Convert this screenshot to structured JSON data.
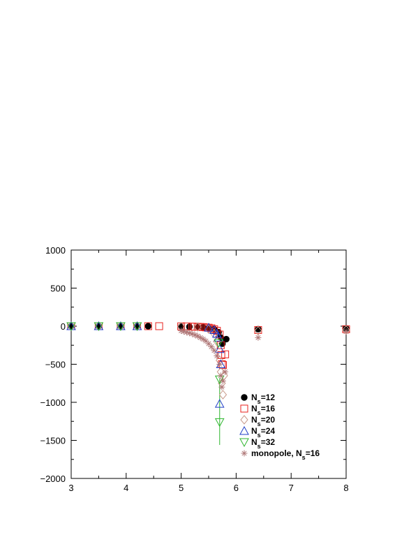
{
  "chart_data": {
    "type": "scatter",
    "title": "",
    "xlabel": "",
    "ylabel": "",
    "xlim": [
      3,
      8
    ],
    "ylim": [
      -2000,
      1000
    ],
    "x_ticks": [
      3,
      4,
      5,
      6,
      7,
      8
    ],
    "y_ticks": [
      1000,
      500,
      0,
      -500,
      -1000,
      -1500,
      -2000
    ],
    "x_tick_labels": [
      "3",
      "4",
      "5",
      "6",
      "7",
      "8"
    ],
    "y_tick_labels": [
      "1000",
      "500",
      "0",
      "−500",
      "−1000",
      "−1500",
      "−2000"
    ],
    "grid": false,
    "legend_position": "bottom-right",
    "series": [
      {
        "name": "N",
        "subscript": "s",
        "suffix": "=12",
        "marker": "filled-circle",
        "color": "#000000",
        "points": [
          [
            3.0,
            0
          ],
          [
            3.5,
            0
          ],
          [
            3.9,
            0
          ],
          [
            4.2,
            0
          ],
          [
            4.4,
            0
          ],
          [
            5.0,
            -5
          ],
          [
            5.15,
            -8
          ],
          [
            5.3,
            -10
          ],
          [
            5.4,
            -15
          ],
          [
            5.5,
            -25
          ],
          [
            5.6,
            -40
          ],
          [
            5.68,
            -80
          ],
          [
            5.72,
            -150
          ],
          [
            5.75,
            -230
          ],
          [
            5.82,
            -170
          ],
          [
            6.4,
            -40
          ],
          [
            8.0,
            -30
          ]
        ]
      },
      {
        "name": "N",
        "subscript": "s",
        "suffix": "=16",
        "marker": "open-square",
        "color": "#e8221e",
        "points": [
          [
            3.0,
            0
          ],
          [
            3.5,
            0
          ],
          [
            3.9,
            0
          ],
          [
            4.2,
            0
          ],
          [
            4.4,
            0
          ],
          [
            4.6,
            0
          ],
          [
            5.0,
            -2
          ],
          [
            5.1,
            -3
          ],
          [
            5.2,
            -5
          ],
          [
            5.25,
            -6
          ],
          [
            5.3,
            -8
          ],
          [
            5.35,
            -10
          ],
          [
            5.4,
            -12
          ],
          [
            5.45,
            -16
          ],
          [
            5.5,
            -20
          ],
          [
            5.55,
            -28
          ],
          [
            5.6,
            -40
          ],
          [
            5.65,
            -60
          ],
          [
            5.7,
            -110
          ],
          [
            5.72,
            -250
          ],
          [
            5.73,
            -380
          ],
          [
            5.74,
            -500
          ],
          [
            5.76,
            -510
          ],
          [
            5.8,
            -370
          ],
          [
            6.4,
            -50
          ],
          [
            8.0,
            -40
          ]
        ]
      },
      {
        "name": "N",
        "subscript": "s",
        "suffix": "=20",
        "marker": "open-diamond",
        "color": "#c8998a",
        "points": [
          [
            3.0,
            0
          ],
          [
            3.5,
            0
          ],
          [
            3.9,
            0
          ],
          [
            4.2,
            0
          ],
          [
            5.0,
            -5
          ],
          [
            5.3,
            -10
          ],
          [
            5.5,
            -40
          ],
          [
            5.6,
            -100
          ],
          [
            5.65,
            -200
          ],
          [
            5.7,
            -450
          ],
          [
            5.72,
            -600
          ],
          [
            5.74,
            -750
          ],
          [
            5.76,
            -900
          ],
          [
            5.78,
            -650
          ],
          [
            6.4,
            -60
          ],
          [
            8.0,
            -50
          ]
        ]
      },
      {
        "name": "N",
        "subscript": "s",
        "suffix": "=24",
        "marker": "open-triangle-up",
        "color": "#1f3ec8",
        "points": [
          [
            3.0,
            0
          ],
          [
            3.5,
            0
          ],
          [
            3.9,
            0
          ],
          [
            4.2,
            0
          ],
          [
            5.5,
            -20
          ],
          [
            5.6,
            -50
          ],
          [
            5.65,
            -100
          ],
          [
            5.68,
            -150
          ],
          [
            5.7,
            -300
          ],
          [
            5.72,
            -500
          ],
          [
            5.7,
            -1020
          ]
        ]
      },
      {
        "name": "N",
        "subscript": "s",
        "suffix": "=32",
        "marker": "open-triangle-down",
        "color": "#2db62d",
        "points": [
          [
            3.0,
            0
          ],
          [
            3.5,
            0
          ],
          [
            3.9,
            0
          ],
          [
            4.2,
            0
          ],
          [
            5.68,
            -220
          ],
          [
            5.7,
            -700
          ],
          [
            5.7,
            -1260
          ]
        ],
        "error_bars": [
          {
            "x": 5.7,
            "low": -1560,
            "high": -680
          }
        ]
      },
      {
        "name": "monopole, N",
        "subscript": "s",
        "suffix": "=16",
        "marker": "asterisk",
        "color": "#b07878",
        "points": [
          [
            5.0,
            -60
          ],
          [
            5.05,
            -70
          ],
          [
            5.1,
            -80
          ],
          [
            5.15,
            -90
          ],
          [
            5.2,
            -100
          ],
          [
            5.25,
            -115
          ],
          [
            5.3,
            -130
          ],
          [
            5.35,
            -150
          ],
          [
            5.4,
            -170
          ],
          [
            5.45,
            -195
          ],
          [
            5.5,
            -230
          ],
          [
            5.55,
            -270
          ],
          [
            5.6,
            -320
          ],
          [
            5.65,
            -390
          ],
          [
            5.7,
            -500
          ],
          [
            5.72,
            -650
          ],
          [
            5.74,
            -800
          ],
          [
            5.76,
            -720
          ],
          [
            5.8,
            -600
          ],
          [
            6.4,
            -150
          ],
          [
            8.0,
            -70
          ]
        ]
      }
    ]
  }
}
